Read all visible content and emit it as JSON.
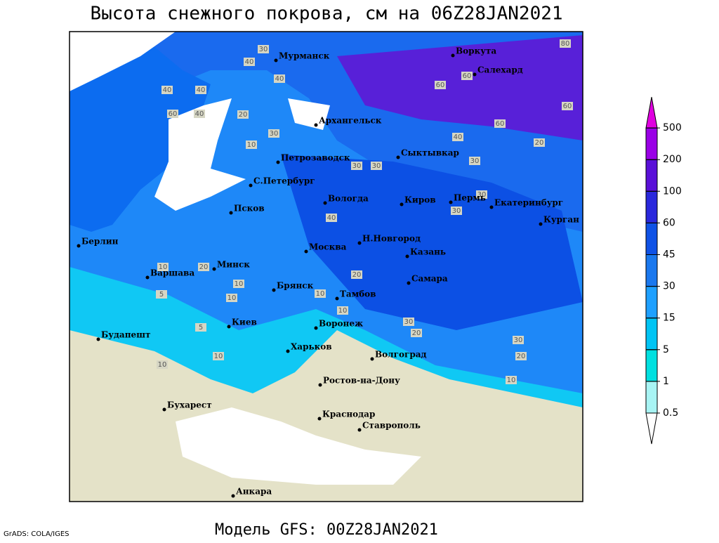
{
  "title": "Высота снежного покрова, см на 06Z28JAN2021",
  "cities": [
    "Мурманск",
    "Воркута",
    "Салехард",
    "Архангельск",
    "Сыктывкар",
    "Петрозаводск",
    "С.Петербург",
    "Вологда",
    "Киров",
    "Пермь",
    "Екатеринбург",
    "Курган",
    "Псков",
    "Берлин",
    "Н.Новгород",
    "Москва",
    "Казань",
    "Минск",
    "Варшава",
    "Брянск",
    "Самара",
    "Тамбов",
    "Киев",
    "Воронеж",
    "Будапешт",
    "Харьков",
    "Волгоград",
    "Ростов-на-Дону",
    "Бухарест",
    "Краснодар",
    "Ставрополь",
    "Анкара"
  ],
  "contour_labels": [
    30,
    40,
    40,
    40,
    40,
    60,
    40,
    80,
    60,
    60,
    60,
    60,
    40,
    20,
    20,
    30,
    10,
    30,
    30,
    30,
    30,
    30,
    40,
    20,
    10,
    10,
    10,
    10,
    30,
    20,
    30,
    20,
    10,
    5,
    10,
    10,
    20,
    10,
    5
  ],
  "colorbar": {
    "levels": [
      0.5,
      1,
      5,
      15,
      30,
      45,
      60,
      100,
      200,
      500
    ],
    "colors": [
      "#ffffff",
      "#a8f4f4",
      "#00e0e0",
      "#00c4f4",
      "#1ea0ff",
      "#1a78ee",
      "#0f52e6",
      "#2a28dc",
      "#5a10d8",
      "#9a00e6",
      "#e000e0"
    ]
  },
  "footer": {
    "credit": "GrADS: COLA/IGES",
    "model": "Модель GFS: 00Z28JAN2021"
  }
}
